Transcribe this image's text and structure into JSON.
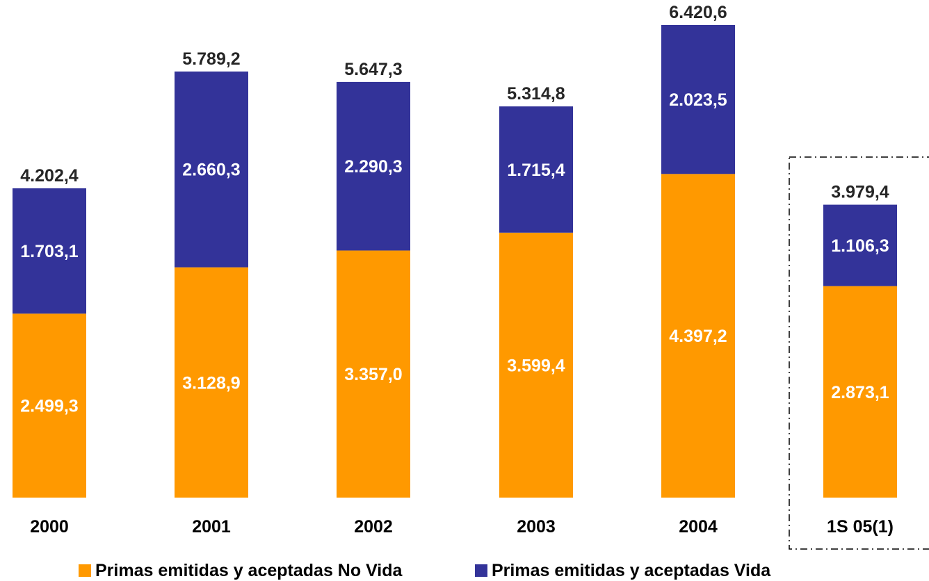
{
  "chart_data": {
    "type": "bar",
    "stacked": true,
    "title": "",
    "xlabel": "",
    "ylabel": "",
    "ylim": [
      0,
      6800
    ],
    "grid": false,
    "legend_position": "bottom",
    "highlighted_category": "1S 05(1)",
    "categories": [
      "2000",
      "2001",
      "2002",
      "2003",
      "2004",
      "1S 05(1)"
    ],
    "series": [
      {
        "name": "Primas emitidas y aceptadas No Vida",
        "color": "#FF9900",
        "values": [
          2499.3,
          3128.9,
          3357.0,
          3599.4,
          4397.2,
          2873.1
        ],
        "labels": [
          "2.499,3",
          "3.128,9",
          "3.357,0",
          "3.599,4",
          "4.397,2",
          "2.873,1"
        ]
      },
      {
        "name": "Primas emitidas y aceptadas Vida",
        "color": "#333399",
        "values": [
          1703.1,
          2660.3,
          2290.3,
          1715.4,
          2023.5,
          1106.3
        ],
        "labels": [
          "1.703,1",
          "2.660,3",
          "2.290,3",
          "1.715,4",
          "2.023,5",
          "1.106,3"
        ]
      }
    ],
    "totals": [
      4202.4,
      5789.2,
      5647.3,
      5314.8,
      6420.6,
      3979.4
    ],
    "total_labels": [
      "4.202,4",
      "5.789,2",
      "5.647,3",
      "5.314,8",
      "6.420,6",
      "3.979,4"
    ]
  }
}
